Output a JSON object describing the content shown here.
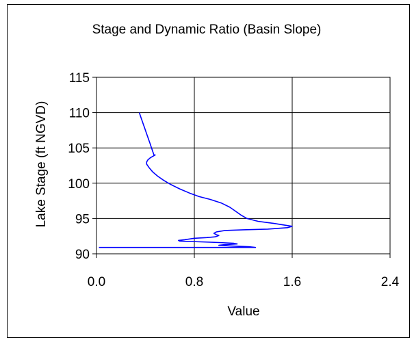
{
  "chart_data": {
    "type": "line",
    "title": "Stage and Dynamic Ratio (Basin Slope)",
    "xlabel": "Value",
    "ylabel": "Lake Stage (ft NGVD)",
    "xlim": [
      0.0,
      2.4
    ],
    "ylim": [
      90,
      115
    ],
    "xticks": [
      "0.0",
      "0.8",
      "1.6",
      "2.4"
    ],
    "yticks": [
      "90",
      "95",
      "100",
      "105",
      "110",
      "115"
    ],
    "grid": true,
    "legend": "none",
    "series": [
      {
        "color": "#0000ff",
        "points": [
          [
            0.35,
            110.0
          ],
          [
            0.36,
            109.5
          ],
          [
            0.37,
            109.0
          ],
          [
            0.38,
            108.5
          ],
          [
            0.39,
            108.0
          ],
          [
            0.4,
            107.5
          ],
          [
            0.41,
            107.0
          ],
          [
            0.42,
            106.5
          ],
          [
            0.43,
            106.0
          ],
          [
            0.44,
            105.5
          ],
          [
            0.45,
            105.0
          ],
          [
            0.46,
            104.5
          ],
          [
            0.47,
            104.0
          ],
          [
            0.48,
            104.0
          ],
          [
            0.46,
            103.8
          ],
          [
            0.44,
            103.6
          ],
          [
            0.42,
            103.3
          ],
          [
            0.41,
            103.0
          ],
          [
            0.41,
            102.7
          ],
          [
            0.43,
            102.2
          ],
          [
            0.46,
            101.6
          ],
          [
            0.5,
            101.0
          ],
          [
            0.55,
            100.4
          ],
          [
            0.61,
            99.8
          ],
          [
            0.68,
            99.2
          ],
          [
            0.76,
            98.6
          ],
          [
            0.84,
            98.1
          ],
          [
            0.93,
            97.7
          ],
          [
            1.02,
            97.2
          ],
          [
            1.09,
            96.6
          ],
          [
            1.14,
            96.0
          ],
          [
            1.18,
            95.5
          ],
          [
            1.23,
            95.0
          ],
          [
            1.32,
            94.6
          ],
          [
            1.45,
            94.3
          ],
          [
            1.56,
            94.0
          ],
          [
            1.6,
            93.9
          ],
          [
            1.56,
            93.7
          ],
          [
            1.4,
            93.5
          ],
          [
            1.2,
            93.4
          ],
          [
            1.05,
            93.3
          ],
          [
            0.98,
            93.1
          ],
          [
            0.96,
            92.9
          ],
          [
            0.98,
            92.7
          ],
          [
            1.0,
            92.6
          ],
          [
            0.97,
            92.4
          ],
          [
            0.9,
            92.3
          ],
          [
            0.8,
            92.2
          ],
          [
            0.72,
            92.0
          ],
          [
            0.67,
            91.9
          ],
          [
            0.68,
            91.8
          ],
          [
            0.85,
            91.7
          ],
          [
            1.0,
            91.6
          ],
          [
            1.12,
            91.5
          ],
          [
            1.15,
            91.4
          ],
          [
            1.05,
            91.3
          ],
          [
            1.0,
            91.2
          ],
          [
            1.1,
            91.1
          ],
          [
            1.25,
            91.0
          ],
          [
            1.3,
            90.9
          ],
          [
            0.8,
            90.9
          ],
          [
            0.4,
            90.9
          ],
          [
            0.02,
            90.9
          ]
        ]
      }
    ]
  }
}
